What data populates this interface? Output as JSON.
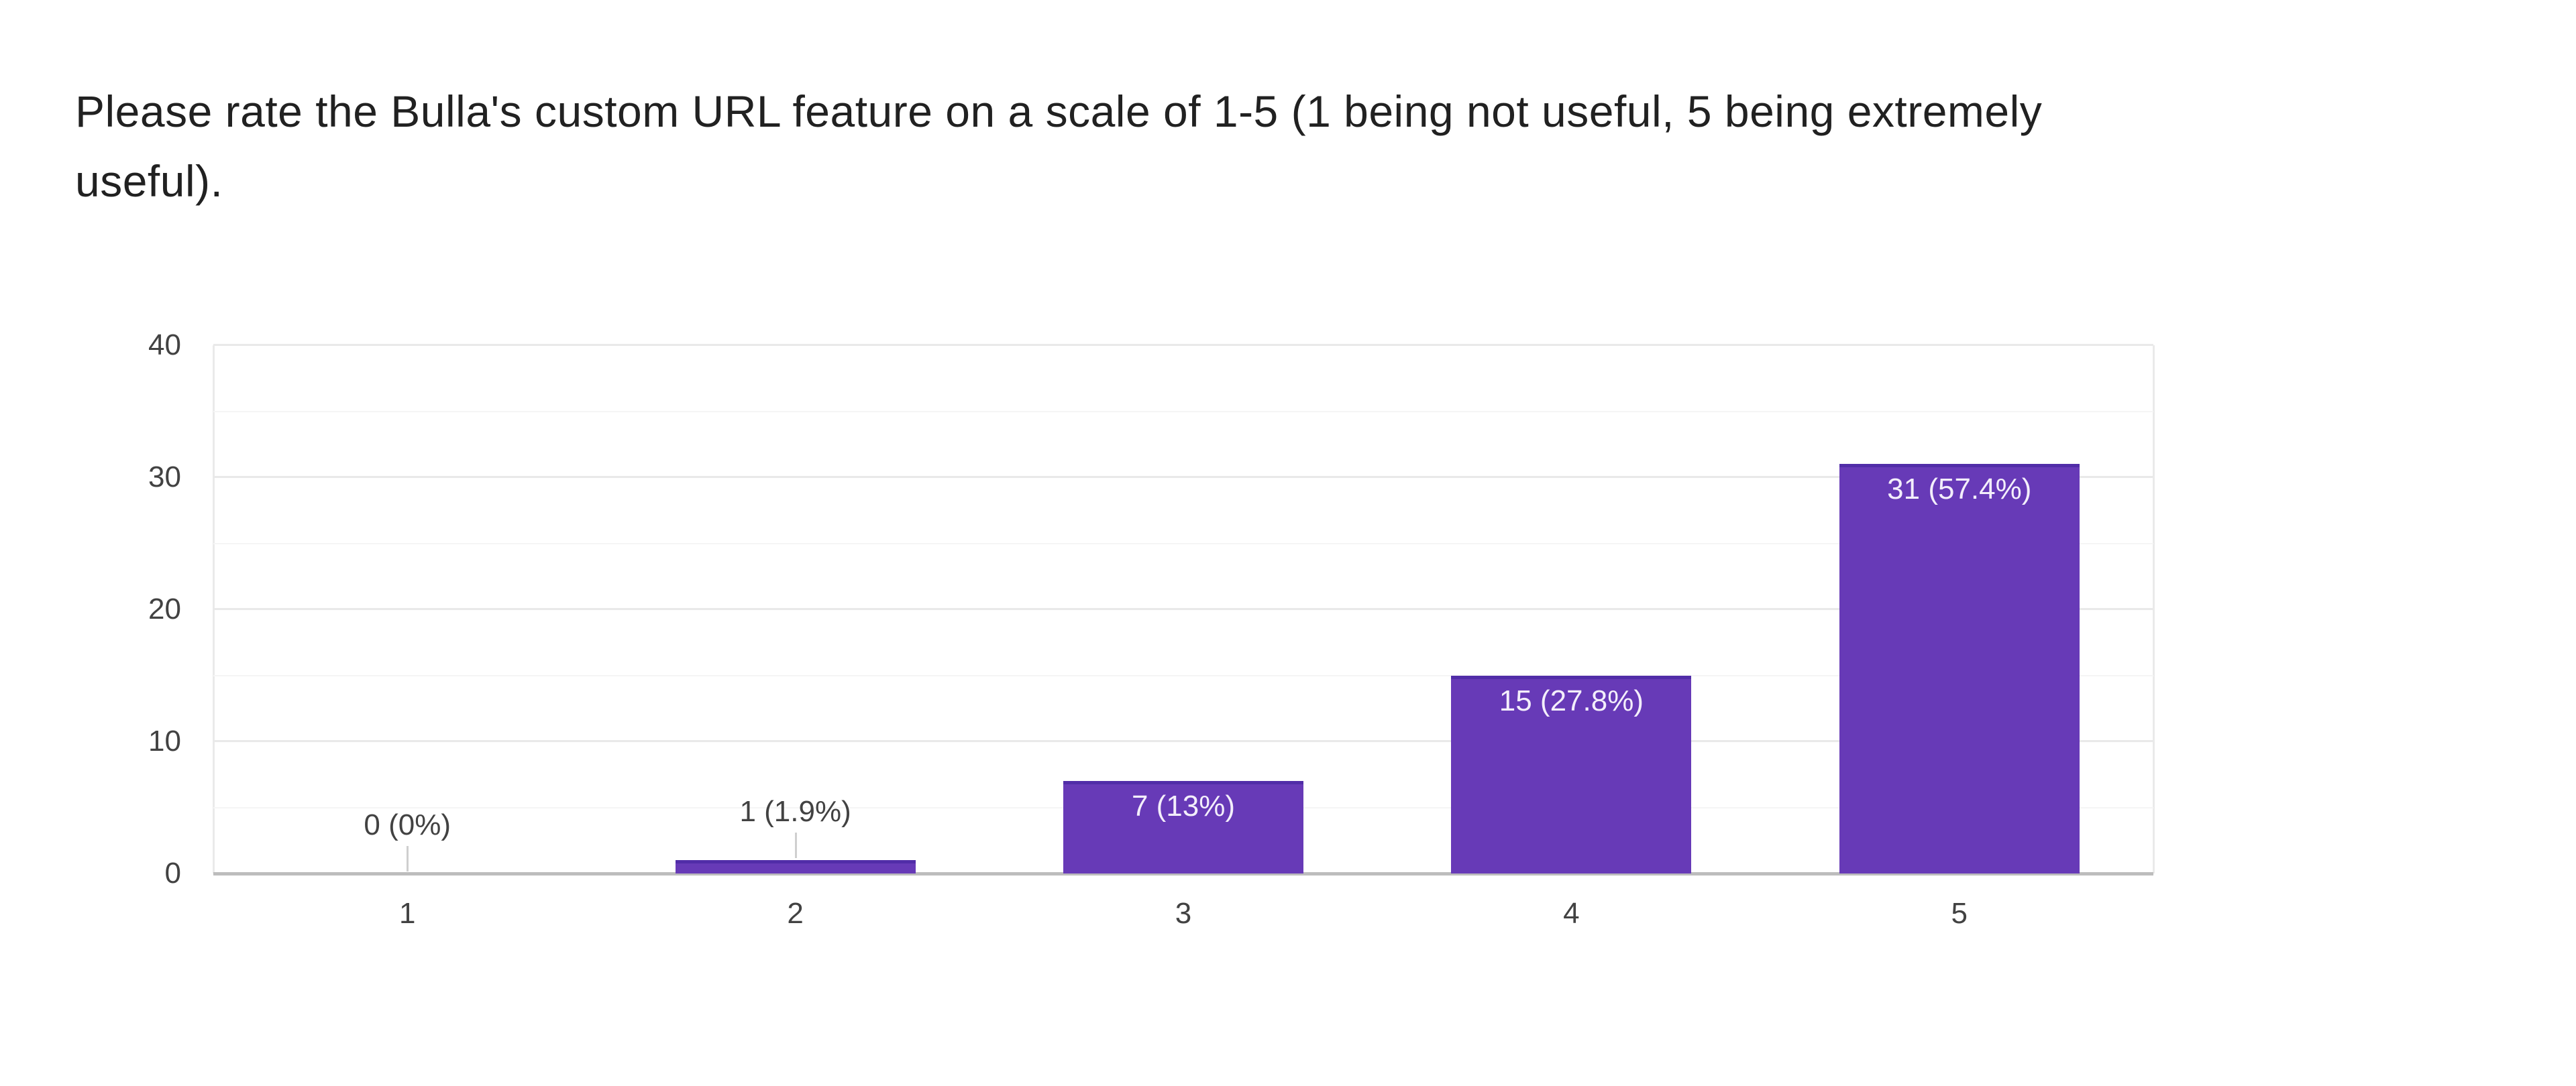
{
  "question": {
    "line1": "Please rate the Bulla's custom URL feature on a scale of 1-5 (1 being not useful, 5 being extremely",
    "line2": "useful)."
  },
  "chart_data": {
    "type": "bar",
    "title": "Please rate the Bulla's custom URL feature on a scale of 1-5 (1 being not useful, 5 being extremely useful).",
    "categories": [
      "1",
      "2",
      "3",
      "4",
      "5"
    ],
    "values": [
      0,
      1,
      7,
      15,
      31
    ],
    "bar_labels": [
      "0 (0%)",
      "1 (1.9%)",
      "7 (13%)",
      "15 (27.8%)",
      "31 (57.4%)"
    ],
    "bar_label_placement": [
      "above",
      "above",
      "inside",
      "inside",
      "inside"
    ],
    "xlabel": "",
    "ylabel": "",
    "ylim": [
      0,
      40
    ],
    "yticks": [
      0,
      10,
      20,
      30,
      40
    ],
    "minor_yticks": [
      5,
      15,
      25,
      35
    ],
    "legend": "none",
    "grid": "horizontal",
    "colors": {
      "bar": "#673ab7",
      "bar_top_edge": "#512da8",
      "inside_label": "#f3eefb",
      "outside_label": "#424242",
      "axis_label": "#424242",
      "major_gridline": "#e9e9e9",
      "minor_gridline": "#f5f5f5",
      "baseline": "#bdbdbd",
      "background": "#ffffff",
      "title_text": "#212121"
    }
  }
}
